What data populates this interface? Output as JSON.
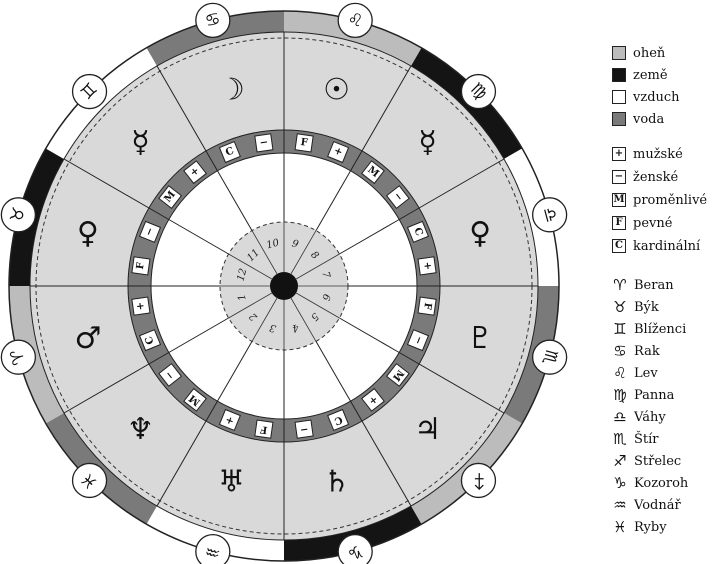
{
  "legend": {
    "elements": [
      {
        "label": "oheň",
        "color": "#bcbcbc"
      },
      {
        "label": "země",
        "color": "#141414"
      },
      {
        "label": "vzduch",
        "color": "#ffffff"
      },
      {
        "label": "voda",
        "color": "#7a7a7a"
      }
    ],
    "qualities": [
      {
        "symbol": "+",
        "label": "mužské"
      },
      {
        "symbol": "−",
        "label": "ženské"
      },
      {
        "symbol": "M",
        "label": "proměnlivé"
      },
      {
        "symbol": "F",
        "label": "pevné"
      },
      {
        "symbol": "C",
        "label": "kardinální"
      }
    ],
    "signs": [
      {
        "glyph": "♈",
        "label": "Beran"
      },
      {
        "glyph": "♉",
        "label": "Býk"
      },
      {
        "glyph": "♊",
        "label": "Blíženci"
      },
      {
        "glyph": "♋",
        "label": "Rak"
      },
      {
        "glyph": "♌",
        "label": "Lev"
      },
      {
        "glyph": "♍",
        "label": "Panna"
      },
      {
        "glyph": "♎",
        "label": "Váhy"
      },
      {
        "glyph": "♏",
        "label": "Štír"
      },
      {
        "glyph": "♐",
        "label": "Střelec"
      },
      {
        "glyph": "♑",
        "label": "Kozoroh"
      },
      {
        "glyph": "♒",
        "label": "Vodnář"
      },
      {
        "glyph": "♓",
        "label": "Ryby"
      }
    ]
  },
  "wheel": {
    "houses": [
      "1",
      "2",
      "3",
      "4",
      "5",
      "6",
      "7",
      "8",
      "9",
      "10",
      "11",
      "12"
    ],
    "sectors": [
      {
        "sign": "♈",
        "ring_color": "#bcbcbc",
        "planet": "♂",
        "q1": "+",
        "q2": "C"
      },
      {
        "sign": "♉",
        "ring_color": "#141414",
        "planet": "♀",
        "q1": "−",
        "q2": "F"
      },
      {
        "sign": "♊",
        "ring_color": "#ffffff",
        "planet": "☿",
        "q1": "+",
        "q2": "M"
      },
      {
        "sign": "♋",
        "ring_color": "#7a7a7a",
        "planet": "☽",
        "q1": "−",
        "q2": "C"
      },
      {
        "sign": "♌",
        "ring_color": "#bcbcbc",
        "planet": "☉",
        "q1": "+",
        "q2": "F"
      },
      {
        "sign": "♍",
        "ring_color": "#141414",
        "planet": "☿",
        "q1": "−",
        "q2": "M"
      },
      {
        "sign": "♎",
        "ring_color": "#ffffff",
        "planet": "♀",
        "q1": "+",
        "q2": "C"
      },
      {
        "sign": "♏",
        "ring_color": "#7a7a7a",
        "planet": "♇",
        "q1": "−",
        "q2": "F"
      },
      {
        "sign": "♐",
        "ring_color": "#bcbcbc",
        "planet": "♃",
        "q1": "+",
        "q2": "M"
      },
      {
        "sign": "♑",
        "ring_color": "#141414",
        "planet": "♄",
        "q1": "−",
        "q2": "C"
      },
      {
        "sign": "♒",
        "ring_color": "#ffffff",
        "planet": "♅",
        "q1": "+",
        "q2": "F"
      },
      {
        "sign": "♓",
        "ring_color": "#7a7a7a",
        "planet": "♆",
        "q1": "−",
        "q2": "M"
      }
    ]
  }
}
